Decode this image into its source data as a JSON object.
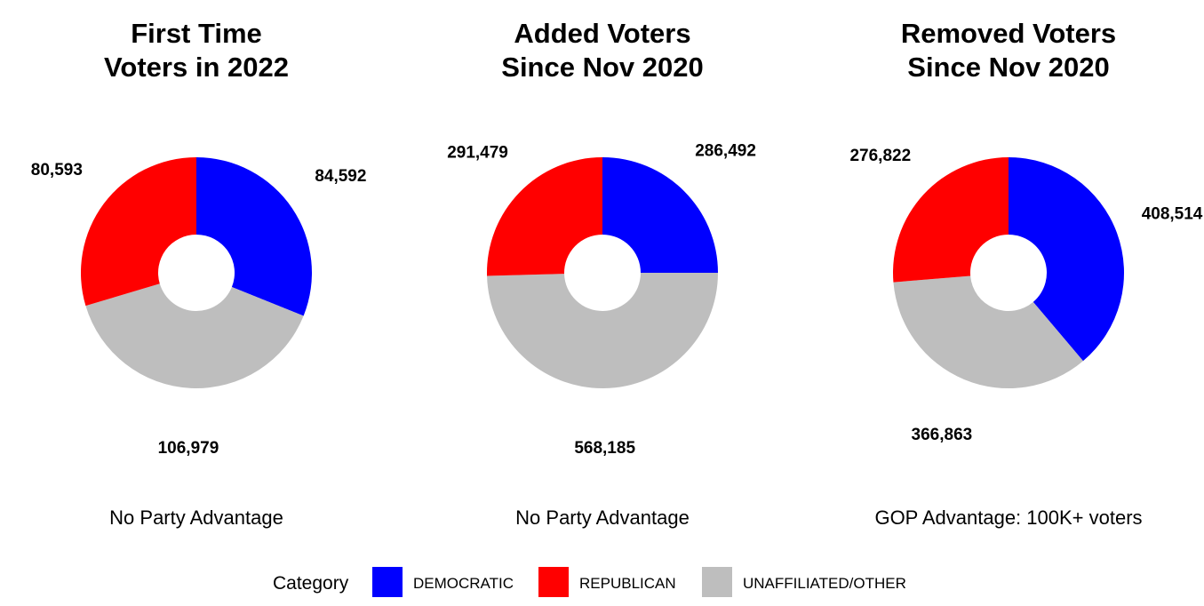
{
  "colors": {
    "democratic": "#0000ff",
    "republican": "#ff0000",
    "unaffiliated": "#bebebe"
  },
  "chart_data": [
    {
      "type": "pie",
      "variant": "donut",
      "title_lines": [
        "First Time",
        "Voters in 2022"
      ],
      "slices": [
        {
          "category": "DEMOCRATIC",
          "value": 84592,
          "label": "84,592"
        },
        {
          "category": "UNAFFILIATED/OTHER",
          "value": 106979,
          "label": "106,979"
        },
        {
          "category": "REPUBLICAN",
          "value": 80593,
          "label": "80,593"
        }
      ],
      "caption": "No Party Advantage"
    },
    {
      "type": "pie",
      "variant": "donut",
      "title_lines": [
        "Added Voters",
        "Since Nov 2020"
      ],
      "slices": [
        {
          "category": "DEMOCRATIC",
          "value": 286492,
          "label": "286,492"
        },
        {
          "category": "UNAFFILIATED/OTHER",
          "value": 568185,
          "label": "568,185"
        },
        {
          "category": "REPUBLICAN",
          "value": 291479,
          "label": "291,479"
        }
      ],
      "caption": "No Party Advantage"
    },
    {
      "type": "pie",
      "variant": "donut",
      "title_lines": [
        "Removed Voters",
        "Since Nov 2020"
      ],
      "slices": [
        {
          "category": "DEMOCRATIC",
          "value": 408514,
          "label": "408,514"
        },
        {
          "category": "UNAFFILIATED/OTHER",
          "value": 366863,
          "label": "366,863"
        },
        {
          "category": "REPUBLICAN",
          "value": 276822,
          "label": "276,822"
        }
      ],
      "caption": "GOP Advantage: 100K+ voters"
    }
  ],
  "legend": {
    "title": "Category",
    "position": "bottom",
    "items": [
      {
        "label": "DEMOCRATIC",
        "color": "#0000ff"
      },
      {
        "label": "REPUBLICAN",
        "color": "#ff0000"
      },
      {
        "label": "UNAFFILIATED/OTHER",
        "color": "#bebebe"
      }
    ]
  }
}
